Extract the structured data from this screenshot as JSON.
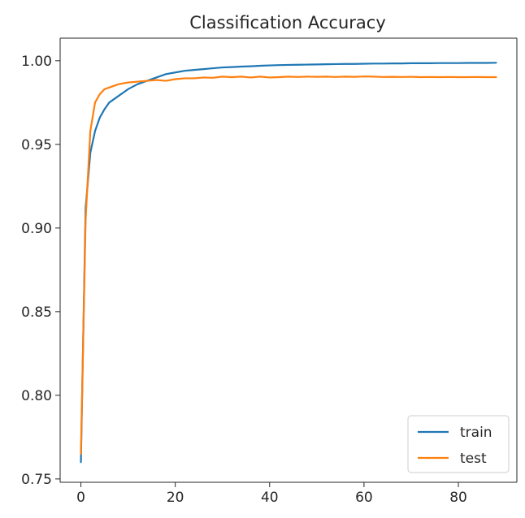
{
  "chart_data": {
    "type": "line",
    "title": "Classification Accuracy",
    "xlabel": "",
    "ylabel": "",
    "xlim": [
      -4.4,
      92.4
    ],
    "ylim": [
      0.748,
      1.0135
    ],
    "xticks": [
      0,
      20,
      40,
      60,
      80
    ],
    "xtick_labels": [
      "0",
      "20",
      "40",
      "60",
      "80"
    ],
    "yticks": [
      0.75,
      0.8,
      0.85,
      0.9,
      0.95,
      1.0
    ],
    "ytick_labels": [
      "0.75",
      "0.80",
      "0.85",
      "0.90",
      "0.95",
      "1.00"
    ],
    "grid": false,
    "legend_position": "lower right",
    "series": [
      {
        "name": "train",
        "color": "#1f77b4",
        "x": [
          0,
          1,
          2,
          3,
          4,
          5,
          6,
          8,
          10,
          12,
          14,
          16,
          18,
          20,
          22,
          24,
          26,
          28,
          30,
          32,
          34,
          36,
          38,
          40,
          42,
          44,
          46,
          48,
          50,
          52,
          54,
          56,
          58,
          60,
          62,
          64,
          66,
          68,
          70,
          72,
          74,
          76,
          78,
          80,
          82,
          84,
          86,
          88
        ],
        "y": [
          0.76,
          0.912,
          0.945,
          0.958,
          0.966,
          0.971,
          0.975,
          0.979,
          0.983,
          0.986,
          0.988,
          0.99,
          0.992,
          0.993,
          0.994,
          0.9945,
          0.995,
          0.9955,
          0.996,
          0.9962,
          0.9965,
          0.9967,
          0.997,
          0.9972,
          0.9974,
          0.9975,
          0.9976,
          0.9977,
          0.9978,
          0.9979,
          0.998,
          0.9981,
          0.9981,
          0.9982,
          0.9983,
          0.9983,
          0.9984,
          0.9984,
          0.9985,
          0.9985,
          0.9985,
          0.9986,
          0.9986,
          0.9986,
          0.9987,
          0.9987,
          0.9987,
          0.9988
        ]
      },
      {
        "name": "test",
        "color": "#ff7f0e",
        "x": [
          0,
          1,
          2,
          3,
          4,
          5,
          6,
          8,
          10,
          12,
          14,
          16,
          18,
          20,
          22,
          24,
          26,
          28,
          30,
          32,
          34,
          36,
          38,
          40,
          42,
          44,
          46,
          48,
          50,
          52,
          54,
          56,
          58,
          60,
          62,
          64,
          66,
          68,
          70,
          72,
          74,
          76,
          78,
          80,
          82,
          84,
          86,
          88
        ],
        "y": [
          0.765,
          0.905,
          0.958,
          0.975,
          0.98,
          0.983,
          0.984,
          0.986,
          0.987,
          0.9875,
          0.988,
          0.9885,
          0.988,
          0.989,
          0.9895,
          0.9895,
          0.99,
          0.9898,
          0.9905,
          0.9902,
          0.9905,
          0.99,
          0.9905,
          0.99,
          0.9902,
          0.9905,
          0.9903,
          0.9905,
          0.9904,
          0.9905,
          0.9903,
          0.9905,
          0.9904,
          0.9906,
          0.9905,
          0.9903,
          0.9904,
          0.9903,
          0.9904,
          0.9902,
          0.9903,
          0.9902,
          0.9903,
          0.9902,
          0.9902,
          0.9903,
          0.9902,
          0.9902
        ]
      }
    ]
  }
}
